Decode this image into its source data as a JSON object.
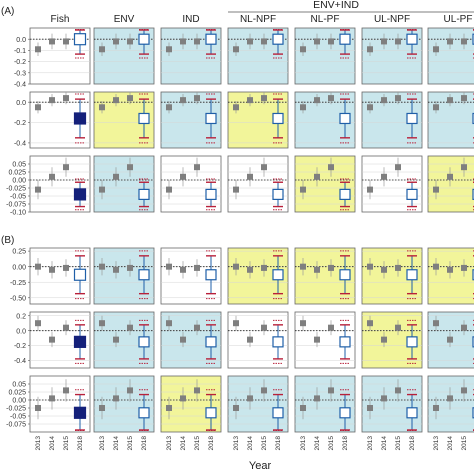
{
  "chart_data": {
    "type": "box-grid",
    "panel_labels": [
      "(A)",
      "(B)"
    ],
    "column_headers": [
      "Fish",
      "ENV",
      "IND",
      "NL-NPF",
      "NL-PF",
      "UL-NPF",
      "UL-PF"
    ],
    "column_group": {
      "label": "ENV+IND",
      "columns": [
        "NL-NPF",
        "NL-PF",
        "UL-NPF",
        "UL-PF"
      ]
    },
    "xlabel": "Year",
    "x_categories": [
      "2013",
      "2014",
      "2015",
      "2018"
    ],
    "highlight_colors": {
      "none": "#ffffff",
      "blue": "#c9e6ec",
      "yellow": "#f2f59a"
    },
    "marker_colors": {
      "observed": "#7f7f7f",
      "pred_open": "#1f5fa8",
      "pred_filled": "#14207a",
      "interval": "#b8203a"
    },
    "rows": [
      {
        "panel": "A",
        "ylim": [
          -0.4,
          0.1
        ],
        "yticks": [
          "0.0",
          "-0.1",
          "-0.2",
          "-0.3",
          "-0.4"
        ],
        "tick_values": [
          0.0,
          -0.1,
          -0.2,
          -0.3,
          -0.4
        ],
        "observed": [
          -0.09,
          -0.02,
          -0.02,
          0.0
        ],
        "obs_ci": [
          0.06,
          0.07,
          0.07,
          0.07
        ],
        "pred_filled": false,
        "highlight": [
          "none",
          "blue",
          "blue",
          "blue",
          "blue",
          "blue",
          "blue"
        ]
      },
      {
        "panel": "A",
        "ylim": [
          -0.45,
          0.1
        ],
        "yticks": [
          "0.0",
          "-0.2",
          "-0.4"
        ],
        "tick_values": [
          0.0,
          -0.2,
          -0.4
        ],
        "observed": [
          -0.05,
          0.02,
          0.04,
          -0.16
        ],
        "obs_ci": [
          0.06,
          0.06,
          0.06,
          0.1
        ],
        "pred_filled": true,
        "highlight": [
          "none",
          "yellow",
          "blue",
          "yellow",
          "blue",
          "blue",
          "blue"
        ]
      },
      {
        "panel": "A",
        "ylim": [
          -0.1,
          0.075
        ],
        "yticks": [
          "0.05",
          "0.025",
          "0.00",
          "-0.025",
          "-0.05",
          "-0.075",
          "-0.10"
        ],
        "tick_values": [
          0.05,
          0.025,
          0.0,
          -0.025,
          -0.05,
          -0.075,
          -0.1
        ],
        "observed": [
          -0.03,
          0.01,
          0.04,
          -0.045
        ],
        "obs_ci": [
          0.03,
          0.03,
          0.03,
          0.02
        ],
        "pred_filled": true,
        "highlight": [
          "none",
          "blue",
          "none",
          "none",
          "yellow",
          "none",
          "yellow"
        ]
      },
      {
        "panel": "B",
        "ylim": [
          -0.6,
          0.3
        ],
        "yticks": [
          "0.25",
          "0.00",
          "-0.25",
          "-0.50"
        ],
        "tick_values": [
          0.25,
          0.0,
          -0.25,
          -0.5
        ],
        "observed": [
          0.0,
          -0.05,
          -0.02,
          -0.13
        ],
        "obs_ci": [
          0.14,
          0.14,
          0.14,
          0.16
        ],
        "pred_filled": false,
        "highlight": [
          "none",
          "blue",
          "none",
          "yellow",
          "yellow",
          "yellow",
          "yellow"
        ]
      },
      {
        "panel": "B",
        "ylim": [
          -0.5,
          0.25
        ],
        "yticks": [
          "0.2",
          "0.0",
          "-0.2",
          "-0.4"
        ],
        "tick_values": [
          0.2,
          0.0,
          -0.2,
          -0.4
        ],
        "observed": [
          0.1,
          -0.12,
          0.04,
          -0.15
        ],
        "obs_ci": [
          0.1,
          0.1,
          0.1,
          0.12
        ],
        "pred_filled": true,
        "highlight": [
          "none",
          "blue",
          "blue",
          "none",
          "none",
          "yellow",
          "blue"
        ]
      },
      {
        "panel": "B",
        "ylim": [
          -0.1,
          0.075
        ],
        "yticks": [
          "0.05",
          "0.025",
          "0.00",
          "-0.025",
          "-0.05",
          "-0.075"
        ],
        "tick_values": [
          0.05,
          0.025,
          0.0,
          -0.025,
          -0.05,
          -0.075
        ],
        "observed": [
          -0.025,
          0.005,
          0.03,
          -0.04
        ],
        "obs_ci": [
          0.035,
          0.035,
          0.035,
          0.03
        ],
        "pred_filled": true,
        "highlight": [
          "none",
          "blue",
          "yellow",
          "blue",
          "blue",
          "blue",
          "blue"
        ]
      }
    ]
  }
}
